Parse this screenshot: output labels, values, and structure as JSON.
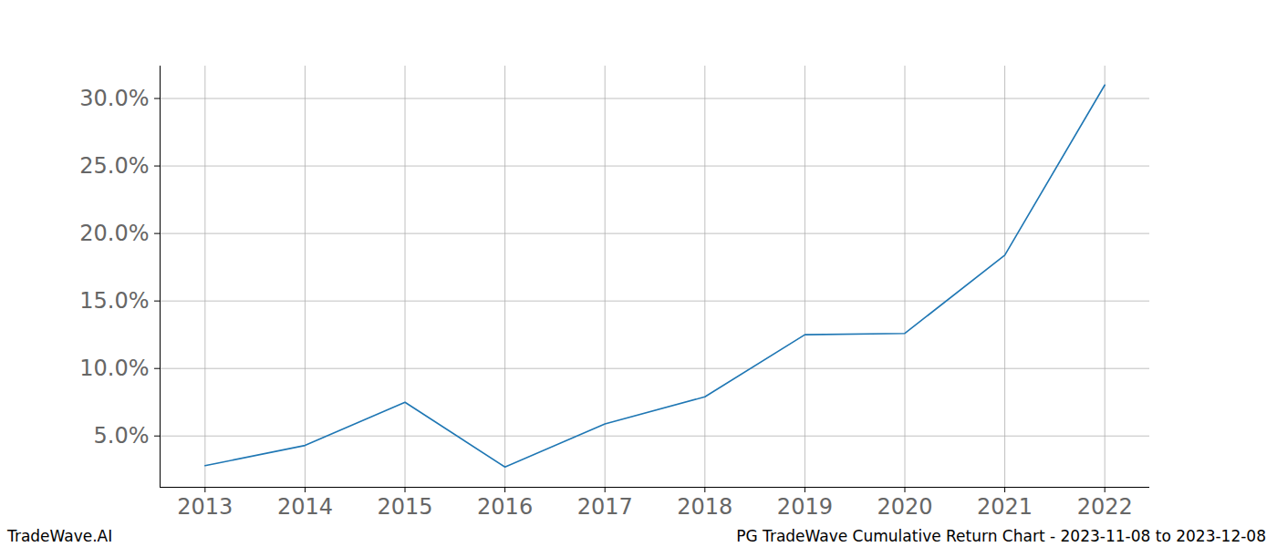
{
  "chart_data": {
    "type": "line",
    "title": "PG TradeWave Cumulative Return Chart - 2023-11-08 to 2023-12-08",
    "source": "TradeWave.AI",
    "x": [
      2013,
      2014,
      2015,
      2016,
      2017,
      2018,
      2019,
      2020,
      2021,
      2022
    ],
    "series": [
      {
        "name": "PG",
        "color": "#1f77b4",
        "values": [
          2.8,
          4.3,
          7.5,
          2.7,
          5.9,
          7.9,
          12.5,
          12.6,
          18.4,
          31.0
        ]
      }
    ],
    "xlim": [
      2012.55,
      2022.45
    ],
    "xticks": [
      2013,
      2014,
      2015,
      2016,
      2017,
      2018,
      2019,
      2020,
      2021,
      2022
    ],
    "ylim": [
      1.2,
      32.4
    ],
    "yticks": [
      {
        "value": 5,
        "label": "5.0%"
      },
      {
        "value": 10,
        "label": "10.0%"
      },
      {
        "value": 15,
        "label": "15.0%"
      },
      {
        "value": 20,
        "label": "20.0%"
      },
      {
        "value": 25,
        "label": "25.0%"
      },
      {
        "value": 30,
        "label": "30.0%"
      }
    ],
    "grid": true
  }
}
